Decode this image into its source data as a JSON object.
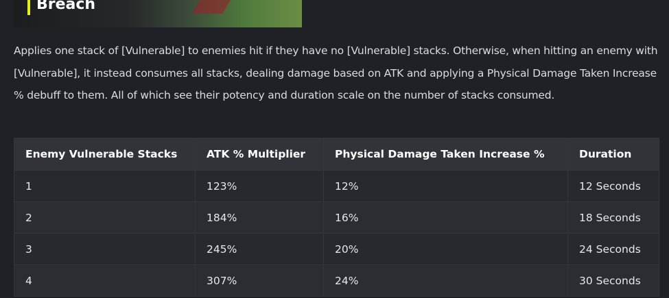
{
  "banner": {
    "title": "Breach",
    "accent": "#e6f01a"
  },
  "description": "Applies one stack of [Vulnerable] to enemies hit if they have no [Vulnerable] stacks. Otherwise, when hitting an enemy with [Vulnerable], it instead consumes all stacks, dealing damage based on ATK and applying a Physical Damage Taken Increase % debuff to them. All of which see their potency and duration scale on the number of stacks consumed.",
  "table": {
    "headers": [
      "Enemy Vulnerable Stacks",
      "ATK % Multiplier",
      "Physical Damage Taken Increase %",
      "Duration"
    ],
    "rows": [
      [
        "1",
        "123%",
        "12%",
        "12 Seconds"
      ],
      [
        "2",
        "184%",
        "16%",
        "18 Seconds"
      ],
      [
        "3",
        "245%",
        "20%",
        "24 Seconds"
      ],
      [
        "4",
        "307%",
        "24%",
        "30 Seconds"
      ]
    ]
  }
}
